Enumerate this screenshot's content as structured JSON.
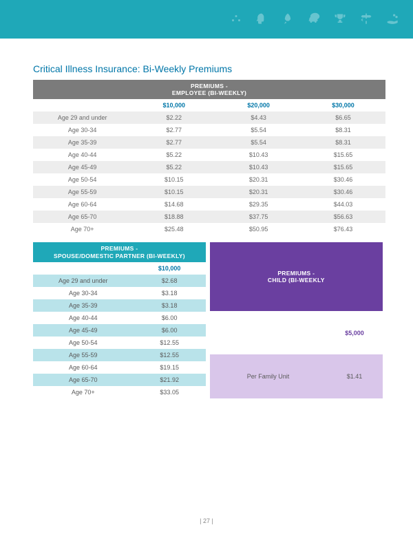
{
  "title": "Critical Illness Insurance: Bi-Weekly Premiums",
  "employee": {
    "header_line1": "PREMIUMS -",
    "header_line2": "EMPLOYEE (BI-WEEKLY)",
    "header_bg": "#7b7b7b",
    "amounts": [
      "$10,000",
      "$20,000",
      "$30,000"
    ],
    "rows": [
      {
        "age": "Age 29 and under",
        "v": [
          "$2.22",
          "$4.43",
          "$6.65"
        ]
      },
      {
        "age": "Age 30-34",
        "v": [
          "$2.77",
          "$5.54",
          "$8.31"
        ]
      },
      {
        "age": "Age 35-39",
        "v": [
          "$2.77",
          "$5.54",
          "$8.31"
        ]
      },
      {
        "age": "Age 40-44",
        "v": [
          "$5.22",
          "$10.43",
          "$15.65"
        ]
      },
      {
        "age": "Age 45-49",
        "v": [
          "$5.22",
          "$10.43",
          "$15.65"
        ]
      },
      {
        "age": "Age 50-54",
        "v": [
          "$10.15",
          "$20.31",
          "$30.46"
        ]
      },
      {
        "age": "Age 55-59",
        "v": [
          "$10.15",
          "$20.31",
          "$30.46"
        ]
      },
      {
        "age": "Age 60-64",
        "v": [
          "$14.68",
          "$29.35",
          "$44.03"
        ]
      },
      {
        "age": "Age 65-70",
        "v": [
          "$18.88",
          "$37.75",
          "$56.63"
        ]
      },
      {
        "age": "Age 70+",
        "v": [
          "$25.48",
          "$50.95",
          "$76.43"
        ]
      }
    ]
  },
  "spouse": {
    "header_line1": "PREMIUMS -",
    "header_line2": "SPOUSE/DOMESTIC PARTNER (BI-WEEKLY)",
    "amount": "$10,000",
    "rows": [
      {
        "age": "Age 29 and under",
        "v": "$2.68"
      },
      {
        "age": "Age 30-34",
        "v": "$3.18"
      },
      {
        "age": "Age 35-39",
        "v": "$3.18"
      },
      {
        "age": "Age 40-44",
        "v": "$6.00"
      },
      {
        "age": "Age 45-49",
        "v": "$6.00"
      },
      {
        "age": "Age 50-54",
        "v": "$12.55"
      },
      {
        "age": "Age 55-59",
        "v": "$12.55"
      },
      {
        "age": "Age 60-64",
        "v": "$19.15"
      },
      {
        "age": "Age 65-70",
        "v": "$21.92"
      },
      {
        "age": "Age 70+",
        "v": "$33.05"
      }
    ]
  },
  "child": {
    "header_line1": "PREMIUMS -",
    "header_line2": "CHILD (BI-WEEKLY",
    "amount": "$5,000",
    "row_label": "Per Family Unit",
    "row_value": "$1.41"
  },
  "page": "| 27 |"
}
